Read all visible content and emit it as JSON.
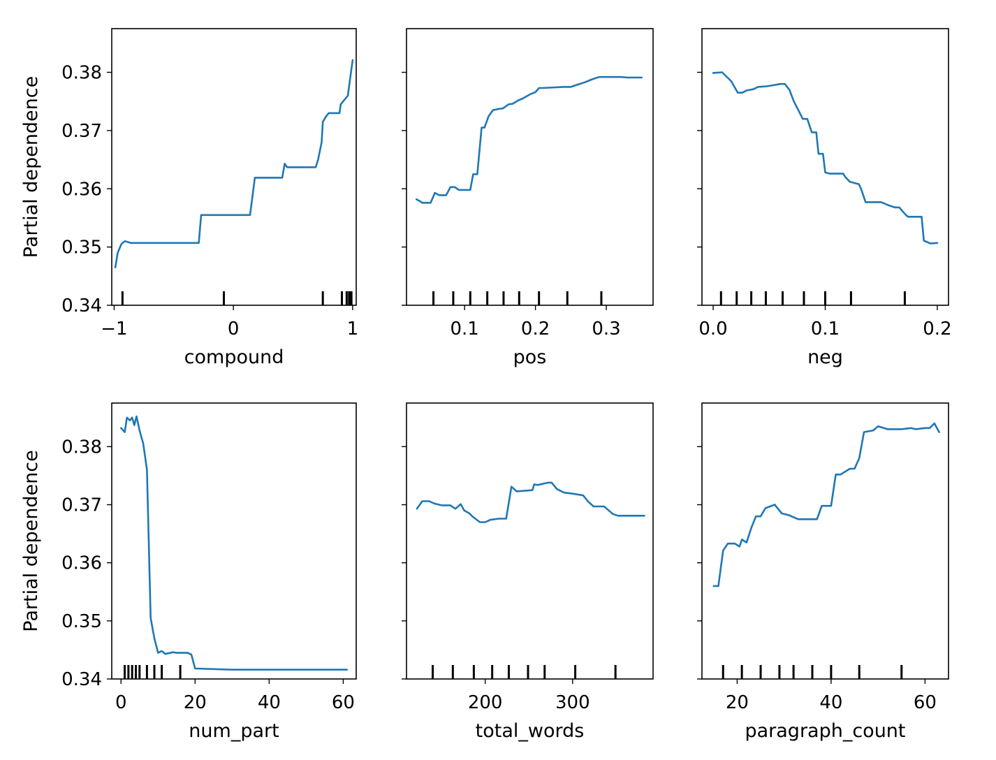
{
  "chart_data": [
    {
      "type": "line",
      "xlabel": "compound",
      "ylabel": "Partial dependence",
      "xlim": [
        -1.02,
        1.03
      ],
      "ylim": [
        0.34,
        0.3875
      ],
      "xticks": [
        -1,
        0,
        1
      ],
      "xtick_labels": [
        "−1",
        "0",
        "1"
      ],
      "yticks": [
        0.34,
        0.35,
        0.36,
        0.37,
        0.38
      ],
      "ytick_labels": [
        "0.34",
        "0.35",
        "0.36",
        "0.37",
        "0.38"
      ],
      "show_ytick_labels": true,
      "rug": [
        -0.93,
        -0.08,
        0.75,
        0.91,
        0.95,
        0.97,
        0.98,
        0.99
      ],
      "x": [
        -0.99,
        -0.97,
        -0.94,
        -0.91,
        -0.86,
        -0.5,
        -0.29,
        -0.27,
        0.0,
        0.14,
        0.18,
        0.41,
        0.43,
        0.45,
        0.69,
        0.71,
        0.74,
        0.75,
        0.78,
        0.8,
        0.83,
        0.86,
        0.89,
        0.9,
        0.96,
        1.0
      ],
      "y": [
        0.3465,
        0.349,
        0.3505,
        0.351,
        0.3507,
        0.3507,
        0.3507,
        0.3555,
        0.3555,
        0.3555,
        0.3619,
        0.3619,
        0.3643,
        0.3637,
        0.3637,
        0.365,
        0.368,
        0.3715,
        0.3725,
        0.373,
        0.373,
        0.373,
        0.373,
        0.3745,
        0.376,
        0.3821
      ]
    },
    {
      "type": "line",
      "xlabel": "pos",
      "ylabel": "",
      "xlim": [
        0.018,
        0.366
      ],
      "ylim": [
        0.34,
        0.3875
      ],
      "xticks": [
        0.1,
        0.2,
        0.3
      ],
      "xtick_labels": [
        "0.1",
        "0.2",
        "0.3"
      ],
      "yticks": [
        0.34,
        0.35,
        0.36,
        0.37,
        0.38
      ],
      "ytick_labels": [],
      "show_ytick_labels": false,
      "rug": [
        0.056,
        0.084,
        0.108,
        0.132,
        0.155,
        0.177,
        0.205,
        0.245,
        0.293
      ],
      "x": [
        0.032,
        0.038,
        0.04,
        0.052,
        0.058,
        0.064,
        0.074,
        0.08,
        0.086,
        0.092,
        0.1,
        0.108,
        0.112,
        0.118,
        0.124,
        0.128,
        0.134,
        0.14,
        0.148,
        0.154,
        0.162,
        0.168,
        0.176,
        0.182,
        0.192,
        0.2,
        0.205,
        0.21,
        0.24,
        0.25,
        0.26,
        0.27,
        0.28,
        0.29,
        0.3,
        0.32,
        0.33,
        0.35
      ],
      "y": [
        0.3582,
        0.3578,
        0.3576,
        0.3576,
        0.3593,
        0.3589,
        0.3589,
        0.3603,
        0.3603,
        0.3598,
        0.3598,
        0.3598,
        0.3625,
        0.3625,
        0.3705,
        0.3705,
        0.3725,
        0.3735,
        0.3737,
        0.3738,
        0.3745,
        0.3746,
        0.3752,
        0.3755,
        0.3762,
        0.3766,
        0.3773,
        0.3773,
        0.3775,
        0.3775,
        0.3779,
        0.3783,
        0.3788,
        0.3792,
        0.3792,
        0.3792,
        0.3791,
        0.3791
      ]
    },
    {
      "type": "line",
      "xlabel": "neg",
      "ylabel": "",
      "xlim": [
        -0.01,
        0.21
      ],
      "ylim": [
        0.34,
        0.3875
      ],
      "xticks": [
        0.0,
        0.1,
        0.2
      ],
      "xtick_labels": [
        "0.0",
        "0.1",
        "0.2"
      ],
      "yticks": [
        0.34,
        0.35,
        0.36,
        0.37,
        0.38
      ],
      "ytick_labels": [],
      "show_ytick_labels": false,
      "rug": [
        0.007,
        0.021,
        0.034,
        0.047,
        0.062,
        0.081,
        0.1,
        0.123,
        0.171
      ],
      "x": [
        0.0,
        0.008,
        0.016,
        0.022,
        0.026,
        0.03,
        0.036,
        0.04,
        0.048,
        0.06,
        0.064,
        0.068,
        0.072,
        0.08,
        0.084,
        0.088,
        0.092,
        0.094,
        0.098,
        0.1,
        0.104,
        0.116,
        0.118,
        0.122,
        0.13,
        0.132,
        0.136,
        0.15,
        0.156,
        0.162,
        0.166,
        0.172,
        0.174,
        0.186,
        0.188,
        0.194,
        0.2
      ],
      "y": [
        0.3799,
        0.38,
        0.3785,
        0.3765,
        0.3765,
        0.3769,
        0.3771,
        0.3775,
        0.3776,
        0.378,
        0.378,
        0.377,
        0.375,
        0.372,
        0.372,
        0.3697,
        0.3697,
        0.366,
        0.366,
        0.3628,
        0.3626,
        0.3626,
        0.362,
        0.3612,
        0.3608,
        0.36,
        0.3577,
        0.3577,
        0.3572,
        0.3568,
        0.3568,
        0.3555,
        0.3552,
        0.3552,
        0.3511,
        0.3506,
        0.3507
      ]
    },
    {
      "type": "line",
      "xlabel": "num_part",
      "ylabel": "Partial dependence",
      "xlim": [
        -2.5,
        63.5
      ],
      "ylim": [
        0.34,
        0.3875
      ],
      "xticks": [
        0,
        20,
        40,
        60
      ],
      "xtick_labels": [
        "0",
        "20",
        "40",
        "60"
      ],
      "yticks": [
        0.34,
        0.35,
        0.36,
        0.37,
        0.38
      ],
      "ytick_labels": [
        "0.34",
        "0.35",
        "0.36",
        "0.37",
        "0.38"
      ],
      "show_ytick_labels": true,
      "rug": [
        1,
        2,
        3,
        4,
        5,
        7,
        9,
        11,
        16
      ],
      "x": [
        0,
        1,
        1.6,
        2.4,
        3,
        3.6,
        4.2,
        5,
        6,
        7,
        8,
        9,
        10,
        11,
        12,
        14,
        15,
        18,
        19,
        20,
        30,
        40,
        61
      ],
      "y": [
        0.3832,
        0.3825,
        0.385,
        0.3845,
        0.385,
        0.3837,
        0.3852,
        0.3828,
        0.3805,
        0.376,
        0.3505,
        0.347,
        0.3445,
        0.3448,
        0.3443,
        0.3446,
        0.3445,
        0.3445,
        0.3442,
        0.3418,
        0.3416,
        0.3416,
        0.3416
      ]
    },
    {
      "type": "line",
      "xlabel": "total_words",
      "ylabel": "",
      "xlim": [
        110,
        392
      ],
      "ylim": [
        0.34,
        0.3875
      ],
      "xticks": [
        200,
        300
      ],
      "xtick_labels": [
        "200",
        "300"
      ],
      "yticks": [
        0.34,
        0.35,
        0.36,
        0.37,
        0.38
      ],
      "ytick_labels": [],
      "show_ytick_labels": false,
      "rug": [
        140,
        163,
        187,
        208,
        227,
        249,
        268,
        303,
        349
      ],
      "x": [
        122,
        128,
        136,
        142,
        150,
        160,
        166,
        172,
        176,
        182,
        186,
        194,
        200,
        206,
        216,
        224,
        230,
        236,
        254,
        256,
        260,
        272,
        276,
        282,
        290,
        300,
        312,
        318,
        324,
        328,
        336,
        346,
        352,
        382
      ],
      "y": [
        0.3693,
        0.3706,
        0.3706,
        0.3702,
        0.3699,
        0.3699,
        0.3693,
        0.3701,
        0.369,
        0.3685,
        0.3679,
        0.367,
        0.367,
        0.3674,
        0.3676,
        0.3676,
        0.3731,
        0.3723,
        0.3725,
        0.3735,
        0.3734,
        0.3738,
        0.3738,
        0.3727,
        0.3721,
        0.3719,
        0.3716,
        0.3705,
        0.3697,
        0.3697,
        0.3697,
        0.3684,
        0.3681,
        0.3681
      ]
    },
    {
      "type": "line",
      "xlabel": "paragraph_count",
      "ylabel": "",
      "xlim": [
        12.5,
        65
      ],
      "ylim": [
        0.34,
        0.3875
      ],
      "xticks": [
        20,
        40,
        60
      ],
      "xtick_labels": [
        "20",
        "40",
        "60"
      ],
      "yticks": [
        0.34,
        0.35,
        0.36,
        0.37,
        0.38
      ],
      "ytick_labels": [],
      "show_ytick_labels": false,
      "rug": [
        17,
        21,
        25,
        29,
        32,
        36,
        40,
        46,
        55
      ],
      "x": [
        15,
        16,
        17,
        18,
        19.5,
        20.5,
        21,
        22,
        23,
        24,
        25,
        26,
        27,
        28,
        29.5,
        31,
        33,
        34,
        37,
        38,
        40,
        41,
        42,
        44,
        45,
        46,
        47,
        49,
        50,
        52,
        55,
        57,
        58,
        60,
        61,
        62,
        63
      ],
      "y": [
        0.356,
        0.356,
        0.3621,
        0.3633,
        0.3633,
        0.3628,
        0.364,
        0.3635,
        0.366,
        0.368,
        0.368,
        0.3694,
        0.3697,
        0.37,
        0.3685,
        0.3682,
        0.3675,
        0.3675,
        0.3675,
        0.3698,
        0.3698,
        0.3752,
        0.3752,
        0.3762,
        0.3762,
        0.378,
        0.3825,
        0.3828,
        0.3835,
        0.383,
        0.383,
        0.3832,
        0.383,
        0.3832,
        0.3832,
        0.384,
        0.3825
      ]
    }
  ]
}
